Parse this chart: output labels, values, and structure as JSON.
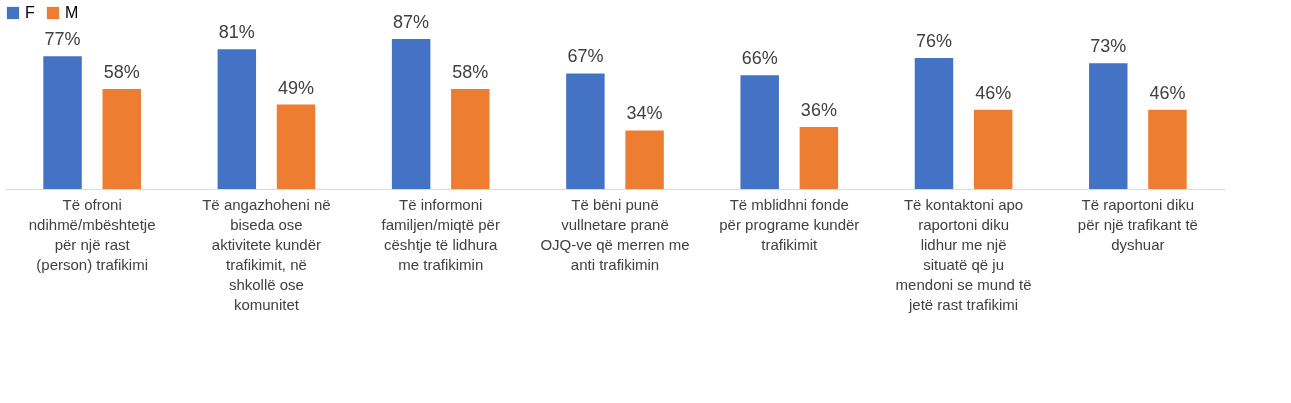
{
  "chart_data": {
    "type": "bar",
    "categories": [
      "Të ofroni ndihmë/mbështetje për një rast (person)  trafikimi",
      "Të angazhoheni në biseda ose aktivitete kundër trafikimit, në shkollë ose komunitet",
      "Të informoni familjen/miqtë për cështje të lidhura me trafikimin",
      "Të bëni punë vullnetare pranë OJQ-ve që merren me anti trafikimin",
      "Të mblidhni fonde për programe kundër trafikimit",
      "Të kontaktoni apo raportoni diku lidhur me një situatë që ju mendoni se mund të jetë rast trafikimi",
      "Të raportoni diku për një trafikant të dyshuar"
    ],
    "series": [
      {
        "name": "F",
        "color": "#4472c4",
        "values": [
          77,
          81,
          87,
          67,
          66,
          76,
          73
        ],
        "value_labels": [
          "77%",
          "81%",
          "87%",
          "67%",
          "66%",
          "76%",
          "73%"
        ]
      },
      {
        "name": "M",
        "color": "#ed7d31",
        "values": [
          58,
          49,
          58,
          34,
          36,
          46,
          46
        ],
        "value_labels": [
          "58%",
          "49%",
          "58%",
          "34%",
          "36%",
          "46%",
          "46%"
        ]
      }
    ],
    "legend": "top",
    "grid": false
  }
}
